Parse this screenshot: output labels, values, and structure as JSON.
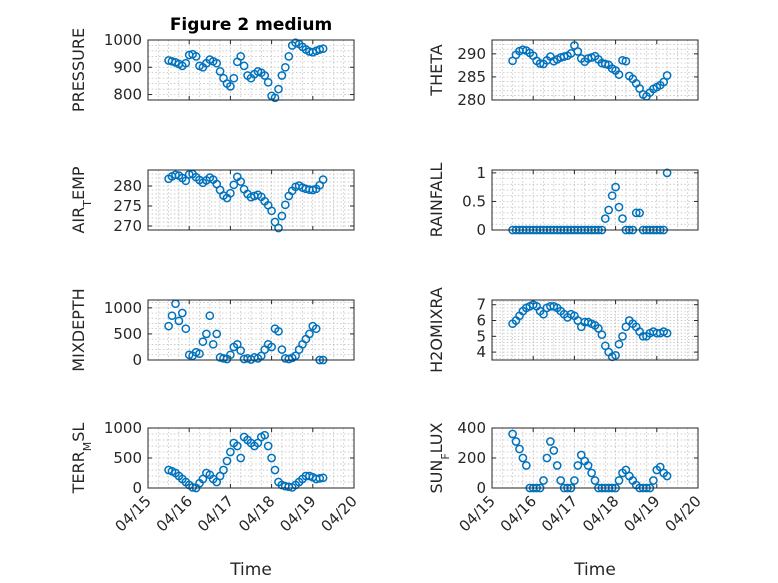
{
  "figure": {
    "title": "Figure 2 medium",
    "x_ticks": [
      "04/15",
      "04/16",
      "04/17",
      "04/18",
      "04/19",
      "04/20"
    ],
    "xlabel": "Time"
  },
  "colors": {
    "marker": "#0072BD",
    "axis": "#262626",
    "grid": "#b8b8b8"
  },
  "chart_data": [
    {
      "type": "scatter",
      "marker": "circle",
      "grid": true,
      "ylabel": "PRESSURE",
      "ylim": [
        780,
        1000
      ],
      "yticks": [
        800,
        900,
        1000
      ],
      "x": [
        "04/15 12:00",
        "04/15 14:00",
        "04/15 16:00",
        "04/15 18:00",
        "04/15 20:00",
        "04/15 22:00",
        "04/16 00:00",
        "04/16 02:00",
        "04/16 04:00",
        "04/16 06:00",
        "04/16 08:00",
        "04/16 10:00",
        "04/16 12:00",
        "04/16 14:00",
        "04/16 16:00",
        "04/16 18:00",
        "04/16 20:00",
        "04/16 22:00",
        "04/17 00:00",
        "04/17 02:00",
        "04/17 04:00",
        "04/17 06:00",
        "04/17 08:00",
        "04/17 10:00",
        "04/17 12:00",
        "04/17 14:00",
        "04/17 16:00",
        "04/17 18:00",
        "04/17 20:00",
        "04/17 22:00",
        "04/18 00:00",
        "04/18 02:00",
        "04/18 04:00",
        "04/18 06:00",
        "04/18 08:00",
        "04/18 10:00",
        "04/18 12:00",
        "04/18 14:00",
        "04/18 16:00",
        "04/18 18:00",
        "04/18 20:00",
        "04/18 22:00",
        "04/19 00:00",
        "04/19 02:00",
        "04/19 04:00",
        "04/19 06:00"
      ],
      "values": [
        925,
        922,
        918,
        912,
        905,
        915,
        945,
        948,
        940,
        905,
        900,
        915,
        928,
        922,
        915,
        885,
        860,
        840,
        830,
        860,
        920,
        940,
        905,
        870,
        860,
        875,
        885,
        880,
        870,
        845,
        795,
        788,
        820,
        870,
        900,
        940,
        980,
        990,
        985,
        975,
        965,
        958,
        955,
        960,
        965,
        968
      ]
    },
    {
      "type": "scatter",
      "marker": "circle",
      "grid": true,
      "ylabel": "THETA",
      "ylim": [
        280,
        293
      ],
      "yticks": [
        280,
        285,
        290
      ],
      "x": [
        "04/15 12:00",
        "04/15 14:00",
        "04/15 16:00",
        "04/15 18:00",
        "04/15 20:00",
        "04/15 22:00",
        "04/16 00:00",
        "04/16 02:00",
        "04/16 04:00",
        "04/16 06:00",
        "04/16 08:00",
        "04/16 10:00",
        "04/16 12:00",
        "04/16 14:00",
        "04/16 16:00",
        "04/16 18:00",
        "04/16 20:00",
        "04/16 22:00",
        "04/17 00:00",
        "04/17 02:00",
        "04/17 04:00",
        "04/17 06:00",
        "04/17 08:00",
        "04/17 10:00",
        "04/17 12:00",
        "04/17 14:00",
        "04/17 16:00",
        "04/17 18:00",
        "04/17 20:00",
        "04/17 22:00",
        "04/18 00:00",
        "04/18 02:00",
        "04/18 04:00",
        "04/18 06:00",
        "04/18 08:00",
        "04/18 10:00",
        "04/18 12:00",
        "04/18 14:00",
        "04/18 16:00",
        "04/18 18:00",
        "04/18 20:00",
        "04/18 22:00",
        "04/19 00:00",
        "04/19 02:00",
        "04/19 04:00",
        "04/19 06:00"
      ],
      "values": [
        288.5,
        289.8,
        290.6,
        290.9,
        290.7,
        290.2,
        289.6,
        288.5,
        287.9,
        287.8,
        288.6,
        289.4,
        288.4,
        288.8,
        289.2,
        289.4,
        289.6,
        290.1,
        291.8,
        290.5,
        289.0,
        288.3,
        289.0,
        289.2,
        289.5,
        288.8,
        288.0,
        287.8,
        287.6,
        286.8,
        286.4,
        285.5,
        288.6,
        288.4,
        285.2,
        284.6,
        283.6,
        282.5,
        281.2,
        280.8,
        281.6,
        282.4,
        282.8,
        283.2,
        283.9,
        285.3
      ]
    },
    {
      "type": "scatter",
      "marker": "circle",
      "grid": true,
      "ylabel": "AIR_TEMP",
      "ylim": [
        269,
        284
      ],
      "yticks": [
        270,
        275,
        280
      ],
      "x": [
        "04/15 12:00",
        "04/15 14:00",
        "04/15 16:00",
        "04/15 18:00",
        "04/15 20:00",
        "04/15 22:00",
        "04/16 00:00",
        "04/16 02:00",
        "04/16 04:00",
        "04/16 06:00",
        "04/16 08:00",
        "04/16 10:00",
        "04/16 12:00",
        "04/16 14:00",
        "04/16 16:00",
        "04/16 18:00",
        "04/16 20:00",
        "04/16 22:00",
        "04/17 00:00",
        "04/17 02:00",
        "04/17 04:00",
        "04/17 06:00",
        "04/17 08:00",
        "04/17 10:00",
        "04/17 12:00",
        "04/17 14:00",
        "04/17 16:00",
        "04/17 18:00",
        "04/17 20:00",
        "04/17 22:00",
        "04/18 00:00",
        "04/18 02:00",
        "04/18 04:00",
        "04/18 06:00",
        "04/18 08:00",
        "04/18 10:00",
        "04/18 12:00",
        "04/18 14:00",
        "04/18 16:00",
        "04/18 18:00",
        "04/18 20:00",
        "04/18 22:00",
        "04/19 00:00",
        "04/19 02:00",
        "04/19 04:00",
        "04/19 06:00"
      ],
      "values": [
        281.8,
        282.4,
        282.8,
        282.6,
        282.0,
        281.3,
        282.9,
        283.0,
        282.2,
        281.5,
        280.8,
        281.4,
        282.1,
        281.6,
        280.5,
        279.0,
        277.6,
        277.0,
        278.2,
        280.3,
        282.3,
        281.1,
        279.2,
        278.0,
        277.2,
        277.5,
        277.8,
        277.3,
        276.2,
        275.2,
        273.8,
        271.0,
        269.5,
        272.5,
        275.3,
        277.5,
        278.8,
        279.8,
        280.1,
        279.6,
        279.3,
        279.1,
        279.0,
        279.3,
        280.2,
        281.6
      ]
    },
    {
      "type": "scatter",
      "marker": "circle",
      "grid": true,
      "ylabel": "RAINFALL",
      "ylim": [
        0,
        1.05
      ],
      "yticks": [
        0,
        0.5,
        1
      ],
      "x": [
        "04/15 12:00",
        "04/15 14:00",
        "04/15 16:00",
        "04/15 18:00",
        "04/15 20:00",
        "04/15 22:00",
        "04/16 00:00",
        "04/16 02:00",
        "04/16 04:00",
        "04/16 06:00",
        "04/16 08:00",
        "04/16 10:00",
        "04/16 12:00",
        "04/16 14:00",
        "04/16 16:00",
        "04/16 18:00",
        "04/16 20:00",
        "04/16 22:00",
        "04/17 00:00",
        "04/17 02:00",
        "04/17 04:00",
        "04/17 06:00",
        "04/17 08:00",
        "04/17 10:00",
        "04/17 12:00",
        "04/17 14:00",
        "04/17 16:00",
        "04/17 18:00",
        "04/17 20:00",
        "04/17 22:00",
        "04/18 00:00",
        "04/18 02:00",
        "04/18 04:00",
        "04/18 06:00",
        "04/18 08:00",
        "04/18 10:00",
        "04/18 12:00",
        "04/18 14:00",
        "04/18 16:00",
        "04/18 18:00",
        "04/18 20:00",
        "04/18 22:00",
        "04/19 00:00",
        "04/19 02:00",
        "04/19 04:00",
        "04/19 06:00"
      ],
      "values": [
        0,
        0,
        0,
        0,
        0,
        0,
        0,
        0,
        0,
        0,
        0,
        0,
        0,
        0,
        0,
        0,
        0,
        0,
        0,
        0,
        0,
        0,
        0,
        0,
        0,
        0,
        0,
        0.2,
        0.35,
        0.6,
        0.75,
        0.4,
        0.2,
        0,
        0,
        0,
        0.3,
        0.3,
        0,
        0,
        0,
        0,
        0,
        0,
        0,
        1.0
      ]
    },
    {
      "type": "scatter",
      "marker": "circle",
      "grid": true,
      "ylabel": "MIXDEPTH",
      "ylim": [
        0,
        1150
      ],
      "yticks": [
        0,
        500,
        1000
      ],
      "x": [
        "04/15 12:00",
        "04/15 14:00",
        "04/15 16:00",
        "04/15 18:00",
        "04/15 20:00",
        "04/15 22:00",
        "04/16 00:00",
        "04/16 02:00",
        "04/16 04:00",
        "04/16 06:00",
        "04/16 08:00",
        "04/16 10:00",
        "04/16 12:00",
        "04/16 14:00",
        "04/16 16:00",
        "04/16 18:00",
        "04/16 20:00",
        "04/16 22:00",
        "04/17 00:00",
        "04/17 02:00",
        "04/17 04:00",
        "04/17 06:00",
        "04/17 08:00",
        "04/17 10:00",
        "04/17 12:00",
        "04/17 14:00",
        "04/17 16:00",
        "04/17 18:00",
        "04/17 20:00",
        "04/17 22:00",
        "04/18 00:00",
        "04/18 02:00",
        "04/18 04:00",
        "04/18 06:00",
        "04/18 08:00",
        "04/18 10:00",
        "04/18 12:00",
        "04/18 14:00",
        "04/18 16:00",
        "04/18 18:00",
        "04/18 20:00",
        "04/18 22:00",
        "04/19 00:00",
        "04/19 02:00",
        "04/19 04:00",
        "04/19 06:00"
      ],
      "values": [
        650,
        850,
        1080,
        750,
        900,
        600,
        100,
        80,
        150,
        120,
        350,
        500,
        850,
        300,
        500,
        50,
        30,
        20,
        100,
        250,
        300,
        180,
        20,
        30,
        10,
        50,
        30,
        80,
        200,
        300,
        250,
        600,
        550,
        200,
        30,
        20,
        40,
        80,
        200,
        300,
        400,
        500,
        650,
        600,
        0,
        0
      ]
    },
    {
      "type": "scatter",
      "marker": "circle",
      "grid": true,
      "ylabel": "H2OMIXRA",
      "ylim": [
        3.5,
        7.3
      ],
      "yticks": [
        4,
        5,
        6,
        7
      ],
      "x": [
        "04/15 12:00",
        "04/15 14:00",
        "04/15 16:00",
        "04/15 18:00",
        "04/15 20:00",
        "04/15 22:00",
        "04/16 00:00",
        "04/16 02:00",
        "04/16 04:00",
        "04/16 06:00",
        "04/16 08:00",
        "04/16 10:00",
        "04/16 12:00",
        "04/16 14:00",
        "04/16 16:00",
        "04/16 18:00",
        "04/16 20:00",
        "04/16 22:00",
        "04/17 00:00",
        "04/17 02:00",
        "04/17 04:00",
        "04/17 06:00",
        "04/17 08:00",
        "04/17 10:00",
        "04/17 12:00",
        "04/17 14:00",
        "04/17 16:00",
        "04/17 18:00",
        "04/17 20:00",
        "04/17 22:00",
        "04/18 00:00",
        "04/18 02:00",
        "04/18 04:00",
        "04/18 06:00",
        "04/18 08:00",
        "04/18 10:00",
        "04/18 12:00",
        "04/18 14:00",
        "04/18 16:00",
        "04/18 18:00",
        "04/18 20:00",
        "04/18 22:00",
        "04/19 00:00",
        "04/19 02:00",
        "04/19 04:00",
        "04/19 06:00"
      ],
      "values": [
        5.8,
        6.0,
        6.3,
        6.6,
        6.8,
        6.9,
        7.0,
        6.9,
        6.6,
        6.4,
        6.8,
        6.9,
        6.9,
        6.8,
        6.6,
        6.4,
        6.2,
        6.4,
        6.3,
        6.0,
        5.6,
        5.9,
        5.9,
        5.8,
        5.7,
        5.5,
        5.1,
        4.4,
        4.0,
        3.7,
        3.8,
        4.5,
        5.0,
        5.6,
        6.0,
        5.8,
        5.6,
        5.3,
        5.0,
        5.0,
        5.2,
        5.3,
        5.2,
        5.2,
        5.3,
        5.2
      ]
    },
    {
      "type": "scatter",
      "marker": "circle",
      "grid": true,
      "ylabel": "TERR_MSL",
      "ylim": [
        0,
        1000
      ],
      "yticks": [
        0,
        500,
        1000
      ],
      "x": [
        "04/15 12:00",
        "04/15 14:00",
        "04/15 16:00",
        "04/15 18:00",
        "04/15 20:00",
        "04/15 22:00",
        "04/16 00:00",
        "04/16 02:00",
        "04/16 04:00",
        "04/16 06:00",
        "04/16 08:00",
        "04/16 10:00",
        "04/16 12:00",
        "04/16 14:00",
        "04/16 16:00",
        "04/16 18:00",
        "04/16 20:00",
        "04/16 22:00",
        "04/17 00:00",
        "04/17 02:00",
        "04/17 04:00",
        "04/17 06:00",
        "04/17 08:00",
        "04/17 10:00",
        "04/17 12:00",
        "04/17 14:00",
        "04/17 16:00",
        "04/17 18:00",
        "04/17 20:00",
        "04/17 22:00",
        "04/18 00:00",
        "04/18 02:00",
        "04/18 04:00",
        "04/18 06:00",
        "04/18 08:00",
        "04/18 10:00",
        "04/18 12:00",
        "04/18 14:00",
        "04/18 16:00",
        "04/18 18:00",
        "04/18 20:00",
        "04/18 22:00",
        "04/19 00:00",
        "04/19 02:00",
        "04/19 04:00",
        "04/19 06:00"
      ],
      "values": [
        300,
        280,
        250,
        200,
        150,
        100,
        50,
        10,
        0,
        80,
        150,
        250,
        220,
        150,
        100,
        200,
        300,
        450,
        600,
        750,
        700,
        500,
        850,
        800,
        750,
        700,
        750,
        850,
        880,
        700,
        500,
        300,
        100,
        50,
        30,
        20,
        10,
        50,
        100,
        150,
        200,
        200,
        180,
        150,
        160,
        170
      ]
    },
    {
      "type": "scatter",
      "marker": "circle",
      "grid": true,
      "ylabel": "SUN_FLUX",
      "ylim": [
        0,
        400
      ],
      "yticks": [
        0,
        200,
        400
      ],
      "x": [
        "04/15 12:00",
        "04/15 14:00",
        "04/15 16:00",
        "04/15 18:00",
        "04/15 20:00",
        "04/15 22:00",
        "04/16 00:00",
        "04/16 02:00",
        "04/16 04:00",
        "04/16 06:00",
        "04/16 08:00",
        "04/16 10:00",
        "04/16 12:00",
        "04/16 14:00",
        "04/16 16:00",
        "04/16 18:00",
        "04/16 20:00",
        "04/16 22:00",
        "04/17 00:00",
        "04/17 02:00",
        "04/17 04:00",
        "04/17 06:00",
        "04/17 08:00",
        "04/17 10:00",
        "04/17 12:00",
        "04/17 14:00",
        "04/17 16:00",
        "04/17 18:00",
        "04/17 20:00",
        "04/17 22:00",
        "04/18 00:00",
        "04/18 02:00",
        "04/18 04:00",
        "04/18 06:00",
        "04/18 08:00",
        "04/18 10:00",
        "04/18 12:00",
        "04/18 14:00",
        "04/18 16:00",
        "04/18 18:00",
        "04/18 20:00",
        "04/18 22:00",
        "04/19 00:00",
        "04/19 02:00",
        "04/19 04:00",
        "04/19 06:00"
      ],
      "values": [
        360,
        310,
        260,
        200,
        150,
        0,
        0,
        0,
        0,
        50,
        200,
        310,
        250,
        150,
        50,
        0,
        0,
        0,
        50,
        150,
        220,
        180,
        150,
        100,
        50,
        0,
        0,
        0,
        0,
        0,
        0,
        50,
        100,
        120,
        80,
        50,
        20,
        0,
        0,
        0,
        0,
        50,
        120,
        140,
        100,
        80
      ]
    }
  ]
}
